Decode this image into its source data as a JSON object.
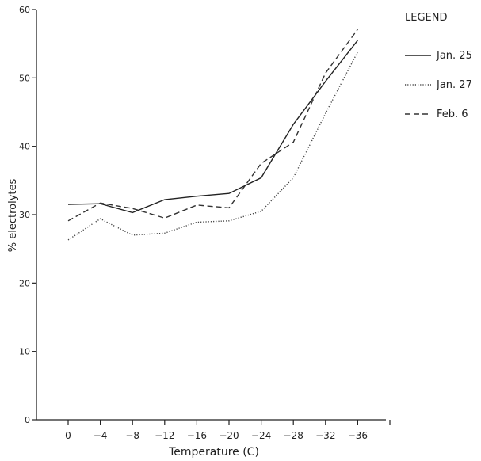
{
  "chart_data": {
    "type": "line",
    "x_values": [
      0,
      -4,
      -8,
      -12,
      -16,
      -20,
      -24,
      -28,
      -32,
      -36
    ],
    "x_tick_labels": [
      "0",
      "−4",
      "−8",
      "−12",
      "−16",
      "−20",
      "−24",
      "−28",
      "−32",
      "−36"
    ],
    "y_ticks": [
      0,
      10,
      20,
      30,
      40,
      50,
      60
    ],
    "ylim": [
      0,
      60
    ],
    "xlabel": "Temperature (C)",
    "ylabel": "% electrolytes",
    "grid": false,
    "legend_title": "LEGEND",
    "legend_position": "top-right",
    "series": [
      {
        "name": "Jan. 25",
        "style": "solid",
        "color": "#222222",
        "values": [
          31.5,
          31.6,
          30.3,
          32.2,
          32.7,
          33.1,
          35.4,
          43.2,
          49.5,
          55.5
        ]
      },
      {
        "name": "Jan. 27",
        "style": "dotted",
        "color": "#444444",
        "values": [
          26.3,
          29.4,
          27.0,
          27.3,
          28.9,
          29.1,
          30.5,
          35.4,
          44.8,
          53.8
        ]
      },
      {
        "name": "Feb. 6",
        "style": "dashed",
        "color": "#333333",
        "values": [
          29.1,
          31.7,
          30.9,
          29.5,
          31.4,
          31.0,
          37.5,
          40.6,
          50.7,
          57.1
        ]
      }
    ]
  }
}
